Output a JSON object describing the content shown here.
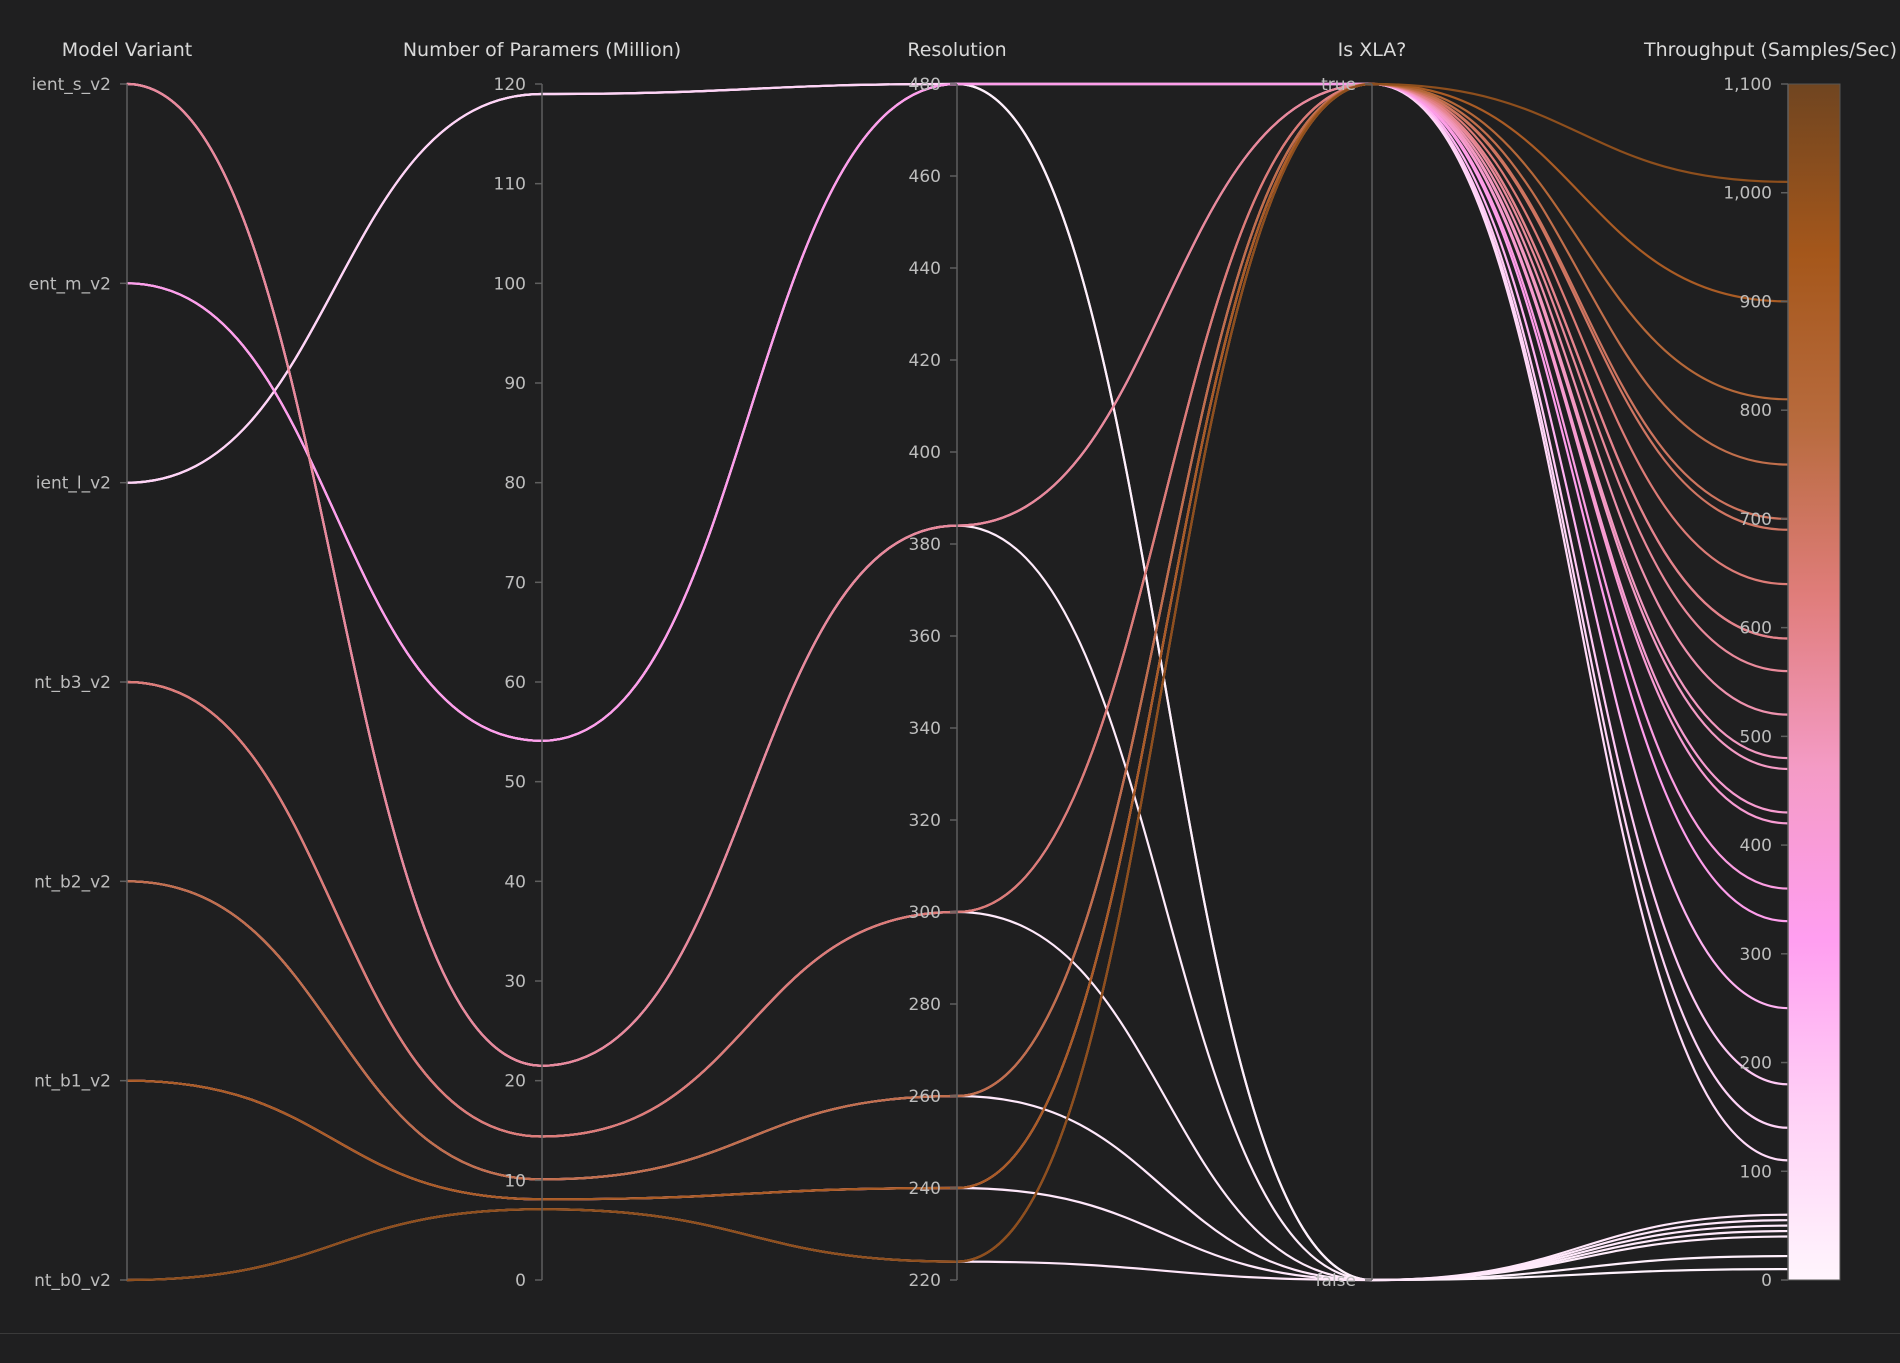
{
  "chart_data": {
    "type": "parallel_coordinates",
    "axes": [
      {
        "key": "model",
        "label": "Model Variant",
        "kind": "categorical",
        "categories": [
          "ient_s_v2",
          "ent_m_v2",
          "ient_l_v2",
          "nt_b3_v2",
          "nt_b2_v2",
          "nt_b1_v2",
          "nt_b0_v2"
        ]
      },
      {
        "key": "params",
        "label": "Number of Paramers (Million)",
        "kind": "numeric",
        "range": [
          0,
          120
        ],
        "ticks": [
          "0",
          "10",
          "20",
          "30",
          "40",
          "50",
          "60",
          "70",
          "80",
          "90",
          "100",
          "110",
          "120"
        ]
      },
      {
        "key": "resolution",
        "label": "Resolution",
        "kind": "numeric",
        "range": [
          220,
          480
        ],
        "ticks": [
          "220",
          "240",
          "260",
          "280",
          "300",
          "320",
          "340",
          "360",
          "380",
          "400",
          "420",
          "440",
          "460",
          "480"
        ]
      },
      {
        "key": "xla",
        "label": "Is XLA?",
        "kind": "categorical",
        "categories": [
          "true",
          "false"
        ]
      },
      {
        "key": "throughput",
        "label": "Throughput (Samples/Sec)",
        "kind": "numeric",
        "range": [
          0,
          1100
        ],
        "ticks": [
          "0",
          "100",
          "200",
          "300",
          "400",
          "500",
          "600",
          "700",
          "800",
          "900",
          "1,000",
          "1,100"
        ],
        "tick_values": [
          0,
          100,
          200,
          300,
          400,
          500,
          600,
          700,
          800,
          900,
          1000,
          1100
        ]
      }
    ],
    "colorscale": {
      "stops": [
        "#fff5fd",
        "#ffd0f6",
        "#ff9ef0",
        "#f49bc5",
        "#e07d7b",
        "#b86b3e",
        "#a5571b",
        "#704520"
      ],
      "range": [
        0,
        1100
      ]
    },
    "lines": [
      {
        "model": "ient_s_v2",
        "params": 21.5,
        "resolution": 384,
        "xla": "true",
        "throughput": 560
      },
      {
        "model": "ient_s_v2",
        "params": 21.5,
        "resolution": 384,
        "xla": "false",
        "throughput": 40
      },
      {
        "model": "ent_m_v2",
        "params": 54.1,
        "resolution": 480,
        "xla": "true",
        "throughput": 330
      },
      {
        "model": "ent_m_v2",
        "params": 54.1,
        "resolution": 480,
        "xla": "false",
        "throughput": 22
      },
      {
        "model": "ient_l_v2",
        "params": 119,
        "resolution": 480,
        "xla": "true",
        "throughput": 140
      },
      {
        "model": "ient_l_v2",
        "params": 119,
        "resolution": 480,
        "xla": "false",
        "throughput": 10
      },
      {
        "model": "nt_b3_v2",
        "params": 14.4,
        "resolution": 300,
        "xla": "true",
        "throughput": 640
      },
      {
        "model": "nt_b3_v2",
        "params": 14.4,
        "resolution": 300,
        "xla": "false",
        "throughput": 45
      },
      {
        "model": "nt_b2_v2",
        "params": 10.1,
        "resolution": 260,
        "xla": "true",
        "throughput": 750
      },
      {
        "model": "nt_b2_v2",
        "params": 10.1,
        "resolution": 260,
        "xla": "false",
        "throughput": 50
      },
      {
        "model": "nt_b1_v2",
        "params": 8.1,
        "resolution": 240,
        "xla": "true",
        "throughput": 900
      },
      {
        "model": "nt_b1_v2",
        "params": 8.1,
        "resolution": 240,
        "xla": "false",
        "throughput": 55
      },
      {
        "model": "nt_b0_v2",
        "params": 7.1,
        "resolution": 224,
        "xla": "true",
        "throughput": 1010
      },
      {
        "model": "nt_b0_v2",
        "params": 7.1,
        "resolution": 224,
        "xla": "false",
        "throughput": 60
      },
      {
        "model": "ient_s_v2",
        "params": 21.5,
        "resolution": 384,
        "xla": "true",
        "throughput": 470
      },
      {
        "model": "ent_m_v2",
        "params": 54.1,
        "resolution": 480,
        "xla": "true",
        "throughput": 250
      },
      {
        "model": "ient_l_v2",
        "params": 119,
        "resolution": 480,
        "xla": "true",
        "throughput": 110
      },
      {
        "model": "nt_b3_v2",
        "params": 14.4,
        "resolution": 300,
        "xla": "true",
        "throughput": 520
      },
      {
        "model": "nt_b2_v2",
        "params": 10.1,
        "resolution": 260,
        "xla": "true",
        "throughput": 590
      },
      {
        "model": "nt_b1_v2",
        "params": 8.1,
        "resolution": 240,
        "xla": "true",
        "throughput": 700
      },
      {
        "model": "nt_b0_v2",
        "params": 7.1,
        "resolution": 224,
        "xla": "true",
        "throughput": 810
      },
      {
        "model": "nt_b3_v2",
        "params": 14.4,
        "resolution": 300,
        "xla": "true",
        "throughput": 420
      },
      {
        "model": "nt_b2_v2",
        "params": 10.1,
        "resolution": 260,
        "xla": "true",
        "throughput": 480
      },
      {
        "model": "nt_b1_v2",
        "params": 8.1,
        "resolution": 240,
        "xla": "true",
        "throughput": 590
      },
      {
        "model": "nt_b0_v2",
        "params": 7.1,
        "resolution": 224,
        "xla": "true",
        "throughput": 690
      },
      {
        "model": "ient_s_v2",
        "params": 21.5,
        "resolution": 384,
        "xla": "true",
        "throughput": 360
      },
      {
        "model": "ent_m_v2",
        "params": 54.1,
        "resolution": 480,
        "xla": "true",
        "throughput": 180
      },
      {
        "model": "nt_b1_v2",
        "params": 8.1,
        "resolution": 240,
        "xla": "true",
        "throughput": 430
      }
    ]
  }
}
